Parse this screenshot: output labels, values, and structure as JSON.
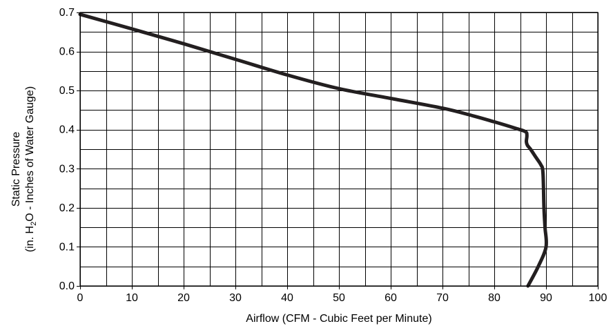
{
  "chart_data": {
    "type": "line",
    "xlabel": "Airflow (CFM - Cubic Feet per Minute)",
    "ylabel_line1": "Static Pressure",
    "ylabel_line2_parts": [
      "(in. H",
      "2",
      "O - Inches of Water Gauge)"
    ],
    "xlim": [
      0,
      100
    ],
    "ylim": [
      0.0,
      0.7
    ],
    "x_ticks": [
      0,
      10,
      20,
      30,
      40,
      50,
      60,
      70,
      80,
      90,
      100
    ],
    "x_tick_labels": [
      "0",
      "10",
      "20",
      "30",
      "40",
      "50",
      "60",
      "70",
      "80",
      "90",
      "100"
    ],
    "y_ticks": [
      0.0,
      0.1,
      0.2,
      0.3,
      0.4,
      0.5,
      0.6,
      0.7
    ],
    "y_tick_labels": [
      "0.0",
      "0.1",
      "0.2",
      "0.3",
      "0.4",
      "0.5",
      "0.6",
      "0.7"
    ],
    "x_minor_step": 5,
    "y_minor_step": 0.05,
    "grid": true,
    "line_color": "#231f20",
    "series": [
      {
        "x": [
          0,
          10,
          20,
          30,
          40,
          50,
          60,
          70,
          76,
          80,
          84,
          86,
          86.3,
          86.2,
          86.4,
          87.0,
          88.0,
          89.0,
          89.4,
          89.6,
          89.8,
          90.0,
          88.5,
          86.5
        ],
        "y": [
          0.695,
          0.658,
          0.62,
          0.58,
          0.54,
          0.505,
          0.48,
          0.455,
          0.435,
          0.42,
          0.404,
          0.395,
          0.385,
          0.37,
          0.36,
          0.35,
          0.33,
          0.31,
          0.29,
          0.2,
          0.15,
          0.1,
          0.05,
          0.0
        ]
      }
    ]
  }
}
